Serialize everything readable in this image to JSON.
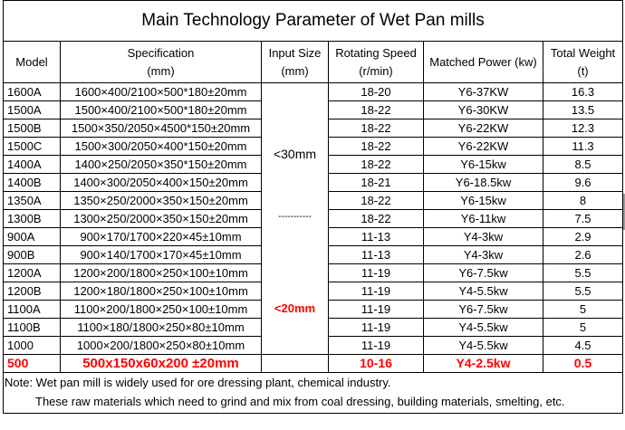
{
  "title": "Main Technology Parameter of Wet Pan mills",
  "headers": {
    "model": "Model",
    "specification": [
      "Specification",
      "(mm)"
    ],
    "input_size": [
      "Input Size",
      "(mm)"
    ],
    "rotating_speed": [
      "Rotating Speed",
      "(r/min)"
    ],
    "matched_power": "Matched Power (kw)",
    "total_weight": [
      "Total Weight",
      "(t)"
    ]
  },
  "input_size_groups": {
    "first": "<30mm",
    "divider": "-----------",
    "second": "<20mm"
  },
  "rows": [
    {
      "model": "1600A",
      "spec": "1600×400/2100×500*180±20mm",
      "speed": "18-20",
      "power": "Y6-37KW",
      "weight": "16.3"
    },
    {
      "model": "1500A",
      "spec": "1500×400/2100×500*180±20mm",
      "speed": "18-22",
      "power": "Y6-30KW",
      "weight": "13.5"
    },
    {
      "model": "1500B",
      "spec": "1500×350/2050×4500*150±20mm",
      "speed": "18-22",
      "power": "Y6-22KW",
      "weight": "12.3"
    },
    {
      "model": "1500C",
      "spec": "1500×300/2050×400*150±20mm",
      "speed": "18-22",
      "power": "Y6-22KW",
      "weight": "11.3"
    },
    {
      "model": "1400A",
      "spec": "1400×250/2050×350*150±20mm",
      "speed": "18-22",
      "power": "Y6-15kw",
      "weight": "8.5"
    },
    {
      "model": "1400B",
      "spec": "1400×300/2050×400×150±20mm",
      "speed": "18-21",
      "power": "Y6-18.5kw",
      "weight": "9.6"
    },
    {
      "model": "1350A",
      "spec": "1350×250/2000×350×150±20mm",
      "speed": "18-22",
      "power": "Y6-15kw",
      "weight": "8"
    },
    {
      "model": "1300B",
      "spec": "1300×250/2000×350×150±20mm",
      "speed": "18-22",
      "power": "Y6-11kw",
      "weight": "7.5"
    },
    {
      "model": "900A",
      "spec": "900×170/1700×220×45±10mm",
      "speed": "11-13",
      "power": "Y4-3kw",
      "weight": "2.9"
    },
    {
      "model": "900B",
      "spec": "900×140/1700×170×45±10mm",
      "speed": "11-13",
      "power": "Y4-3kw",
      "weight": "2.6"
    },
    {
      "model": "1200A",
      "spec": "1200×200/1800×250×100±10mm",
      "speed": "11-19",
      "power": "Y6-7.5kw",
      "weight": "5.5"
    },
    {
      "model": "1200B",
      "spec": "1200×180/1800×250×100±10mm",
      "speed": "11-19",
      "power": "Y4-5.5kw",
      "weight": "5.5"
    },
    {
      "model": "1100A",
      "spec": "1100×200/1800×250×100±10mm",
      "speed": "11-19",
      "power": "Y6-7.5kw",
      "weight": "5"
    },
    {
      "model": "1100B",
      "spec": "1100×180/1800×250×80±10mm",
      "speed": "11-19",
      "power": "Y4-5.5kw",
      "weight": "5"
    },
    {
      "model": "1000",
      "spec": "1000×200/1800×250×80±10mm",
      "speed": "11-19",
      "power": "Y4-5.5kw",
      "weight": "4.5"
    },
    {
      "model": "500",
      "spec": "500x150x60x200 ±20mm",
      "speed": "10-16",
      "power": "Y4-2.5kw",
      "weight": "0.5"
    }
  ],
  "note": {
    "line1": "Note: Wet pan mill is widely used for ore dressing plant, chemical industry.",
    "line2": "These raw materials which need to grind and mix from coal dressing, building materials, smelting, etc."
  },
  "colors": {
    "highlight": "#ff0000",
    "border": "#000000",
    "background": "#ffffff"
  }
}
